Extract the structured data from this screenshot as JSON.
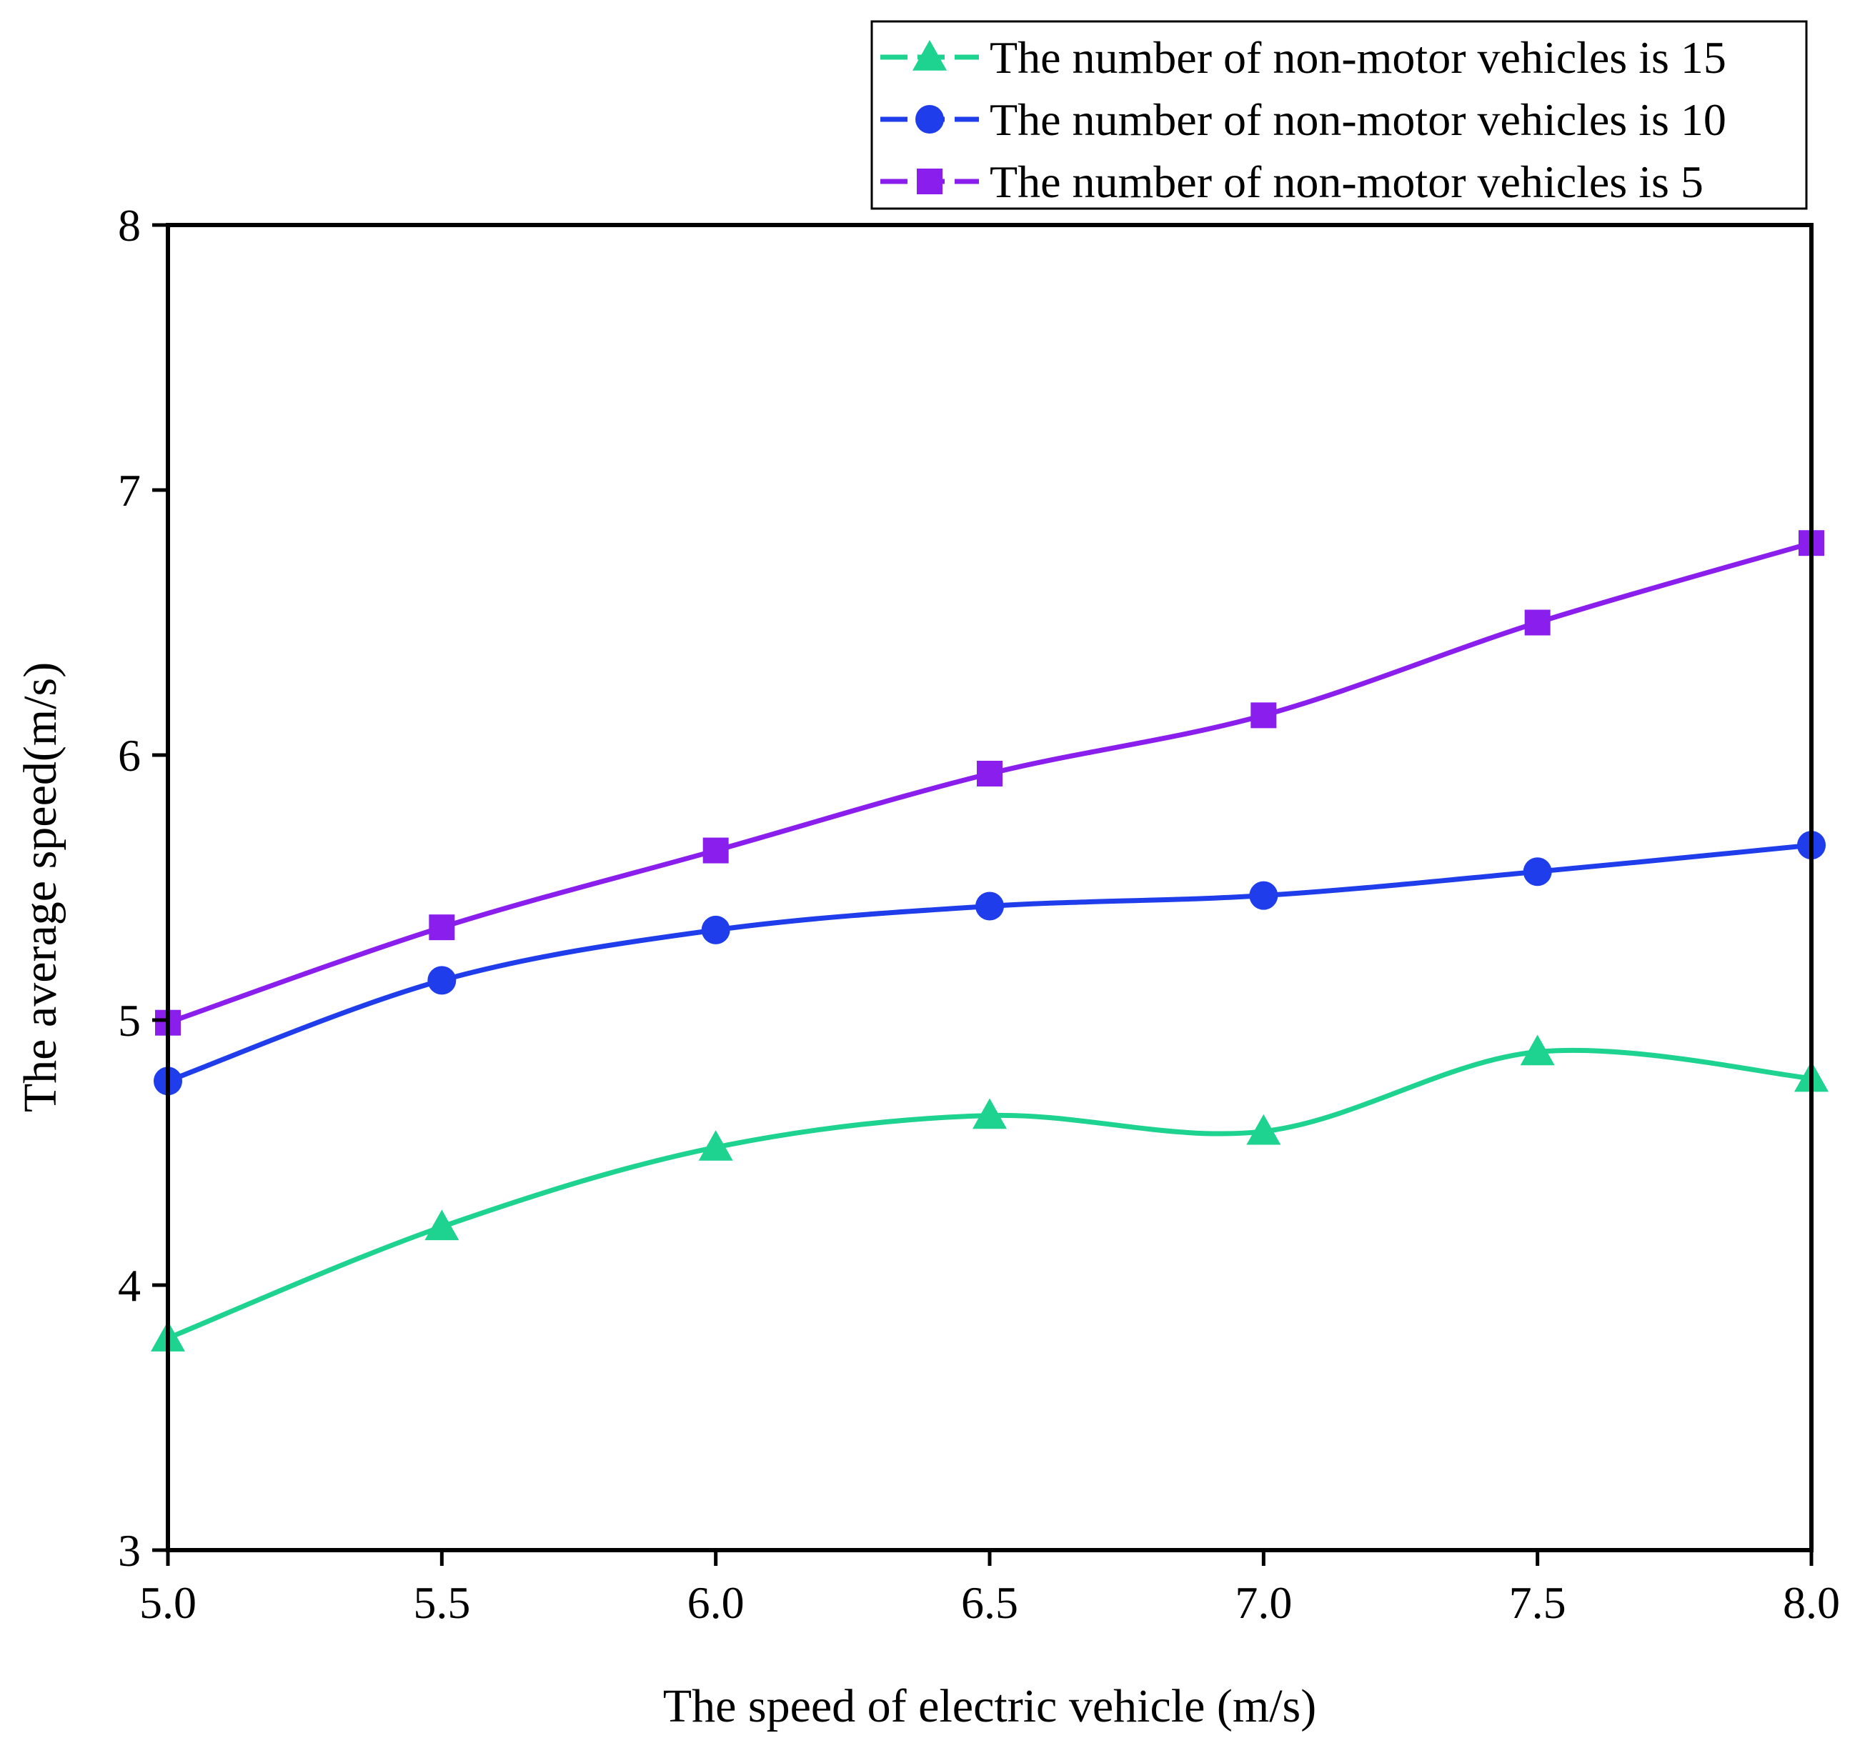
{
  "chart_data": {
    "type": "line",
    "title": "",
    "xlabel": "The speed of electric vehicle (m/s)",
    "ylabel": "The average speed(m/s)",
    "xlim": [
      5.0,
      8.0
    ],
    "ylim": [
      3,
      8
    ],
    "x": [
      5.0,
      5.5,
      6.0,
      6.5,
      7.0,
      7.5,
      8.0
    ],
    "xticks": [
      "5.0",
      "5.5",
      "6.0",
      "6.5",
      "7.0",
      "7.5",
      "8.0"
    ],
    "yticks": [
      "3",
      "4",
      "5",
      "6",
      "7",
      "8"
    ],
    "grid": false,
    "legend_position": "top-right",
    "series": [
      {
        "name": "The number of non-motor vehicles is 15",
        "marker": "triangle",
        "color": "#1DD38F",
        "values": [
          3.8,
          4.22,
          4.52,
          4.64,
          4.58,
          4.88,
          4.78
        ]
      },
      {
        "name": "The number of non-motor vehicles is 10",
        "marker": "circle",
        "color": "#1F3DEB",
        "values": [
          4.77,
          5.15,
          5.34,
          5.43,
          5.47,
          5.56,
          5.66
        ]
      },
      {
        "name": "The number of non-motor vehicles is 5",
        "marker": "square",
        "color": "#8A1EEC",
        "values": [
          4.99,
          5.35,
          5.64,
          5.93,
          6.15,
          6.5,
          6.8
        ]
      }
    ]
  }
}
